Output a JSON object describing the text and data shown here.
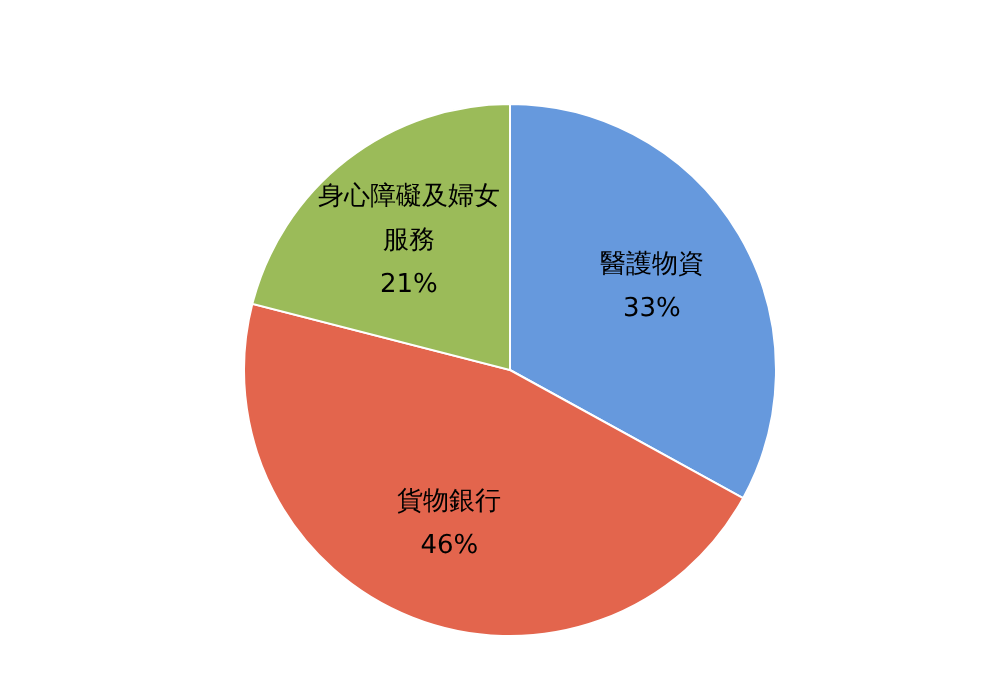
{
  "chart_data": {
    "type": "pie",
    "categories": [
      "醫護物資",
      "貨物銀行",
      "身心障礙及婦女服務"
    ],
    "values": [
      33,
      46,
      21
    ],
    "value_labels": [
      "33%",
      "46%",
      "21%"
    ],
    "colors": [
      "#6699dd",
      "#e3654d",
      "#9bbb59"
    ]
  }
}
